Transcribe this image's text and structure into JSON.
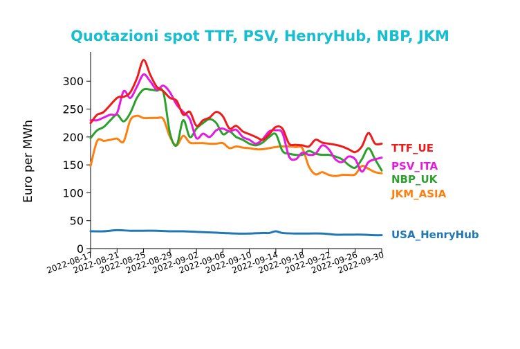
{
  "chart_data": {
    "type": "line",
    "title": "Quotazioni spot TTF, PSV, HenryHub, NBP, JKM",
    "title_color": "#17becf",
    "xlabel": "",
    "ylabel": "Euro per MWh",
    "ylim": [
      0,
      340
    ],
    "yticks": [
      "0",
      "50",
      "100",
      "150",
      "200",
      "250",
      "300"
    ],
    "ytick_values": [
      0,
      50,
      100,
      150,
      200,
      250,
      300
    ],
    "xlim": [
      "2022-08-17",
      "2022-09-30"
    ],
    "xticks": [
      "2022-08-17",
      "2022-08-21",
      "2022-08-25",
      "2022-08-29",
      "2022-09-02",
      "2022-09-06",
      "2022-09-10",
      "2022-09-14",
      "2022-09-18",
      "2022-09-22",
      "2022-09-26",
      "2022-09-30"
    ],
    "grid": false,
    "legend": "labels at line ends, right",
    "series": [
      {
        "name": "TTF_UE",
        "color": "#ef1a1a",
        "x": [
          "2022-08-17",
          "2022-08-18",
          "2022-08-19",
          "2022-08-21",
          "2022-08-22",
          "2022-08-23",
          "2022-08-24",
          "2022-08-25",
          "2022-08-26",
          "2022-08-27",
          "2022-08-28",
          "2022-08-29",
          "2022-08-30",
          "2022-08-31",
          "2022-09-01",
          "2022-09-02",
          "2022-09-03",
          "2022-09-04",
          "2022-09-05",
          "2022-09-06",
          "2022-09-07",
          "2022-09-08",
          "2022-09-09",
          "2022-09-10",
          "2022-09-11",
          "2022-09-12",
          "2022-09-13",
          "2022-09-14",
          "2022-09-15",
          "2022-09-16",
          "2022-09-17",
          "2022-09-18",
          "2022-09-19",
          "2022-09-20",
          "2022-09-21",
          "2022-09-22",
          "2022-09-23",
          "2022-09-24",
          "2022-09-25",
          "2022-09-26",
          "2022-09-27",
          "2022-09-28",
          "2022-09-29",
          "2022-09-30"
        ],
        "y": [
          225,
          240,
          245,
          270,
          272,
          280,
          305,
          338,
          312,
          290,
          282,
          270,
          265,
          240,
          245,
          220,
          230,
          235,
          245,
          237,
          215,
          220,
          210,
          205,
          200,
          195,
          205,
          218,
          215,
          188,
          186,
          185,
          183,
          195,
          190,
          188,
          186,
          183,
          178,
          173,
          183,
          207,
          188,
          188
        ]
      },
      {
        "name": "PSV_ITA",
        "color": "#e61adf",
        "x": [
          "2022-08-17",
          "2022-08-18",
          "2022-08-19",
          "2022-08-20",
          "2022-08-21",
          "2022-08-22",
          "2022-08-23",
          "2022-08-24",
          "2022-08-25",
          "2022-08-26",
          "2022-08-27",
          "2022-08-28",
          "2022-08-29",
          "2022-08-30",
          "2022-08-31",
          "2022-09-01",
          "2022-09-02",
          "2022-09-03",
          "2022-09-04",
          "2022-09-05",
          "2022-09-06",
          "2022-09-07",
          "2022-09-08",
          "2022-09-09",
          "2022-09-10",
          "2022-09-11",
          "2022-09-12",
          "2022-09-13",
          "2022-09-14",
          "2022-09-15",
          "2022-09-16",
          "2022-09-17",
          "2022-09-18",
          "2022-09-19",
          "2022-09-20",
          "2022-09-21",
          "2022-09-22",
          "2022-09-23",
          "2022-09-24",
          "2022-09-25",
          "2022-09-26",
          "2022-09-27",
          "2022-09-28",
          "2022-09-29",
          "2022-09-30"
        ],
        "y": [
          230,
          230,
          235,
          240,
          243,
          282,
          270,
          290,
          312,
          300,
          285,
          292,
          280,
          258,
          245,
          232,
          198,
          206,
          200,
          212,
          215,
          210,
          213,
          200,
          195,
          188,
          196,
          210,
          212,
          207,
          165,
          160,
          172,
          168,
          170,
          185,
          178,
          160,
          155,
          165,
          160,
          138,
          155,
          160,
          163
        ]
      },
      {
        "name": "NBP_UK",
        "color": "#2ca02c",
        "x": [
          "2022-08-17",
          "2022-08-18",
          "2022-08-19",
          "2022-08-20",
          "2022-08-21",
          "2022-08-22",
          "2022-08-23",
          "2022-08-24",
          "2022-08-25",
          "2022-08-26",
          "2022-08-27",
          "2022-08-28",
          "2022-08-29",
          "2022-08-30",
          "2022-08-31",
          "2022-09-01",
          "2022-09-02",
          "2022-09-03",
          "2022-09-04",
          "2022-09-05",
          "2022-09-06",
          "2022-09-07",
          "2022-09-08",
          "2022-09-09",
          "2022-09-10",
          "2022-09-11",
          "2022-09-12",
          "2022-09-13",
          "2022-09-14",
          "2022-09-15",
          "2022-09-16",
          "2022-09-17",
          "2022-09-18",
          "2022-09-19",
          "2022-09-20",
          "2022-09-21",
          "2022-09-22",
          "2022-09-23",
          "2022-09-24",
          "2022-09-25",
          "2022-09-26",
          "2022-09-27",
          "2022-09-28",
          "2022-09-29",
          "2022-09-30"
        ],
        "y": [
          198,
          212,
          218,
          230,
          240,
          228,
          243,
          270,
          285,
          285,
          283,
          280,
          207,
          185,
          230,
          200,
          215,
          225,
          232,
          225,
          205,
          210,
          200,
          195,
          188,
          185,
          190,
          200,
          205,
          175,
          170,
          168,
          168,
          175,
          170,
          168,
          168,
          165,
          160,
          150,
          145,
          160,
          180,
          160,
          140
        ]
      },
      {
        "name": "JKM_ASIA",
        "color": "#ff7f0e",
        "x": [
          "2022-08-17",
          "2022-08-18",
          "2022-08-19",
          "2022-08-20",
          "2022-08-21",
          "2022-08-22",
          "2022-08-23",
          "2022-08-24",
          "2022-08-25",
          "2022-08-26",
          "2022-08-27",
          "2022-08-28",
          "2022-08-29",
          "2022-08-30",
          "2022-08-31",
          "2022-09-01",
          "2022-09-02",
          "2022-09-03",
          "2022-09-04",
          "2022-09-05",
          "2022-09-06",
          "2022-09-07",
          "2022-09-08",
          "2022-09-09",
          "2022-09-10",
          "2022-09-11",
          "2022-09-12",
          "2022-09-13",
          "2022-09-14",
          "2022-09-15",
          "2022-09-16",
          "2022-09-17",
          "2022-09-18",
          "2022-09-19",
          "2022-09-20",
          "2022-09-21",
          "2022-09-22",
          "2022-09-23",
          "2022-09-24",
          "2022-09-25",
          "2022-09-26",
          "2022-09-27",
          "2022-09-28",
          "2022-09-29",
          "2022-09-30"
        ],
        "y": [
          148,
          193,
          193,
          195,
          197,
          192,
          230,
          238,
          234,
          234,
          234,
          232,
          200,
          185,
          202,
          190,
          189,
          189,
          188,
          188,
          189,
          180,
          183,
          181,
          180,
          178,
          178,
          180,
          182,
          183,
          183,
          182,
          180,
          147,
          133,
          137,
          132,
          130,
          132,
          132,
          133,
          148,
          143,
          137,
          135
        ]
      },
      {
        "name": "USA_HenryHub",
        "color": "#1f77b4",
        "x": [
          "2022-08-17",
          "2022-08-19",
          "2022-08-21",
          "2022-08-23",
          "2022-08-25",
          "2022-08-27",
          "2022-08-29",
          "2022-08-31",
          "2022-09-02",
          "2022-09-04",
          "2022-09-06",
          "2022-09-08",
          "2022-09-10",
          "2022-09-12",
          "2022-09-13",
          "2022-09-14",
          "2022-09-15",
          "2022-09-17",
          "2022-09-19",
          "2022-09-21",
          "2022-09-23",
          "2022-09-25",
          "2022-09-27",
          "2022-09-29",
          "2022-09-30"
        ],
        "y": [
          31,
          31,
          33,
          32,
          32,
          32,
          31,
          31,
          30,
          29,
          28,
          27,
          27,
          28,
          28,
          31,
          28,
          27,
          27,
          27,
          25,
          25,
          25,
          24,
          24
        ]
      }
    ]
  }
}
